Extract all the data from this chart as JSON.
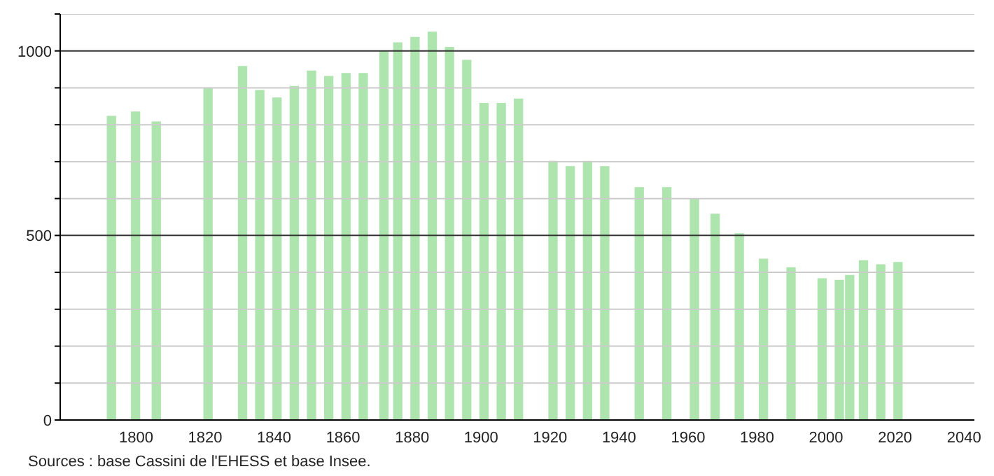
{
  "chart_data": {
    "type": "bar",
    "x": [
      1793,
      1800,
      1806,
      1821,
      1831,
      1836,
      1841,
      1846,
      1851,
      1856,
      1861,
      1866,
      1872,
      1876,
      1881,
      1886,
      1891,
      1896,
      1901,
      1906,
      1911,
      1921,
      1926,
      1931,
      1936,
      1946,
      1954,
      1962,
      1968,
      1975,
      1982,
      1990,
      1999,
      2004,
      2007,
      2011,
      2016,
      2021
    ],
    "values": [
      824,
      836,
      809,
      900,
      959,
      894,
      874,
      905,
      947,
      932,
      940,
      940,
      999,
      1023,
      1038,
      1052,
      1011,
      976,
      859,
      859,
      871,
      702,
      688,
      702,
      688,
      631,
      631,
      600,
      559,
      506,
      437,
      414,
      384,
      380,
      393,
      433,
      422,
      428
    ],
    "color": "#aee4ae",
    "xlim": [
      1778,
      2043
    ],
    "xticks": [
      1800,
      1820,
      1840,
      1860,
      1880,
      1900,
      1920,
      1940,
      1960,
      1980,
      2000,
      2020,
      2040
    ],
    "ylim": [
      0,
      1100
    ],
    "yticks": [
      0,
      {
        "value": 100,
        "label": null
      },
      {
        "value": 200,
        "label": null
      },
      {
        "value": 300,
        "label": null
      },
      {
        "value": 400,
        "label": null
      },
      500,
      {
        "value": 600,
        "label": null
      },
      {
        "value": 700,
        "label": null
      },
      {
        "value": 800,
        "label": null
      },
      {
        "value": 900,
        "label": null
      },
      1000,
      {
        "value": 1100,
        "label": null
      }
    ],
    "grid": "y",
    "annotations": [
      "Sources : base Cassini de l'EHESS et base Insee."
    ]
  }
}
